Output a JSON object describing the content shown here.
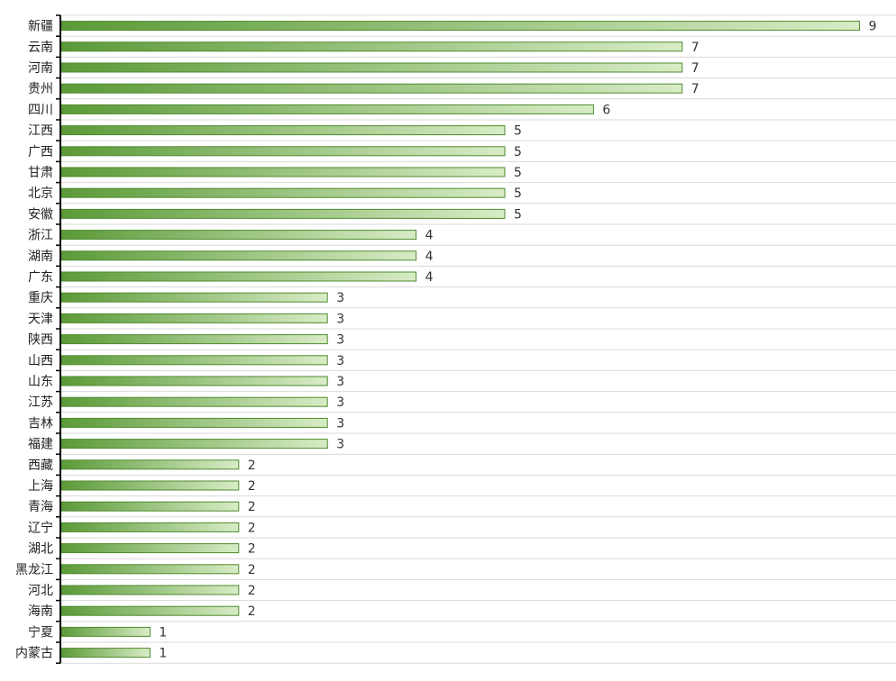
{
  "chart_data": {
    "type": "bar",
    "orientation": "horizontal",
    "categories": [
      "新疆",
      "云南",
      "河南",
      "贵州",
      "四川",
      "江西",
      "广西",
      "甘肃",
      "北京",
      "安徽",
      "浙江",
      "湖南",
      "广东",
      "重庆",
      "天津",
      "陕西",
      "山西",
      "山东",
      "江苏",
      "吉林",
      "福建",
      "西藏",
      "上海",
      "青海",
      "辽宁",
      "湖北",
      "黑龙江",
      "河北",
      "海南",
      "宁夏",
      "内蒙古"
    ],
    "values": [
      9,
      7,
      7,
      7,
      6,
      5,
      5,
      5,
      5,
      5,
      4,
      4,
      4,
      3,
      3,
      3,
      3,
      3,
      3,
      3,
      3,
      2,
      2,
      2,
      2,
      2,
      2,
      2,
      2,
      1,
      1
    ],
    "xlim": [
      0,
      9
    ],
    "grid": true,
    "legend": "none",
    "colors": {
      "bar_start": "#5b9a38",
      "bar_end": "#d8ecc6",
      "bar_stroke": "#4f8a2e",
      "grid": "#d9d9d9",
      "axis": "#000000"
    }
  }
}
